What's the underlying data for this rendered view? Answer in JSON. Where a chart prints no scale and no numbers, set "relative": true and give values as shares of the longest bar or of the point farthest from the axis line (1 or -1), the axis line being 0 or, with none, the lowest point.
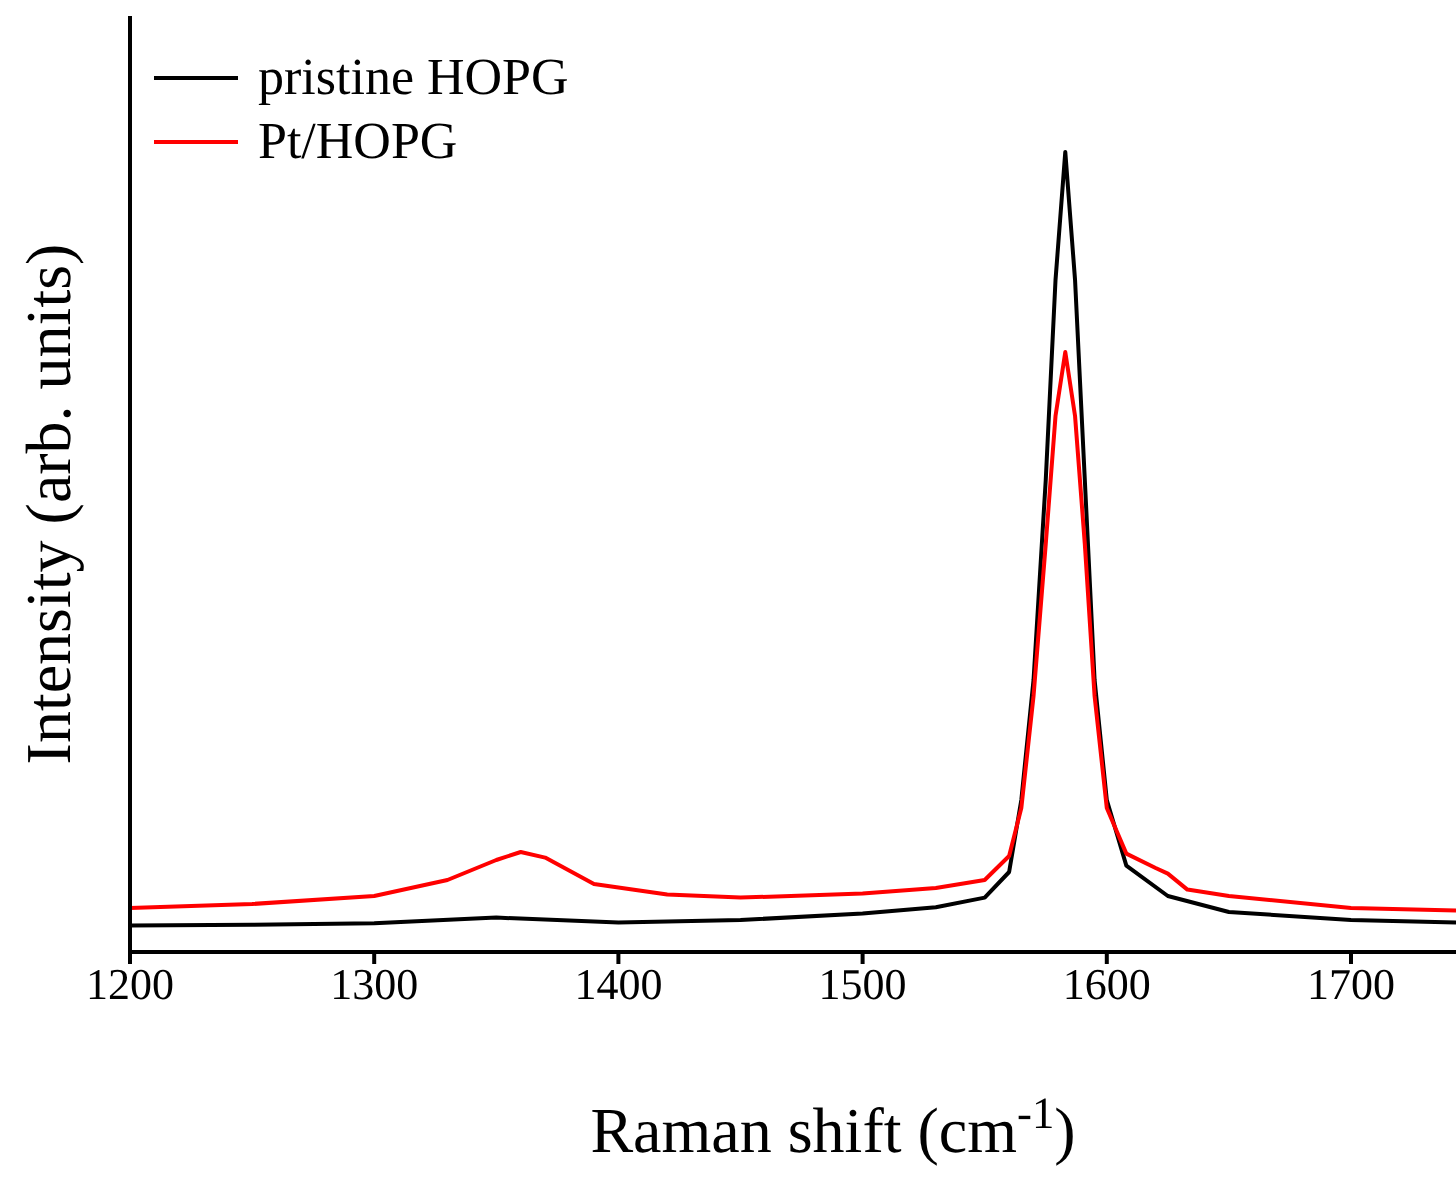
{
  "chart_data": {
    "type": "line",
    "xlabel": "Raman shift (cm$^{-1}$)",
    "ylabel": "Intensity (arb. units)",
    "relative": true,
    "xlim": [
      1200,
      1743
    ],
    "xticks": [
      1200,
      1300,
      1400,
      1500,
      1600,
      1700
    ],
    "legend": "top left",
    "grid": false,
    "marker": "none",
    "line_style": "solid",
    "series": [
      {
        "name": "pristine HOPG",
        "color": "#000000",
        "x": [
          1200,
          1250,
          1300,
          1350,
          1400,
          1450,
          1500,
          1530,
          1550,
          1560,
          1565,
          1570,
          1575,
          1579,
          1583,
          1587,
          1591,
          1595,
          1600,
          1608,
          1625,
          1650,
          1700,
          1743
        ],
        "values": [
          0.033,
          0.034,
          0.036,
          0.043,
          0.037,
          0.04,
          0.048,
          0.056,
          0.068,
          0.1,
          0.19,
          0.34,
          0.59,
          0.84,
          1.0,
          0.84,
          0.59,
          0.34,
          0.19,
          0.108,
          0.07,
          0.05,
          0.04,
          0.037
        ]
      },
      {
        "name": "Pt/HOPG",
        "color": "#ff0000",
        "x": [
          1200,
          1250,
          1300,
          1330,
          1350,
          1360,
          1370,
          1390,
          1420,
          1450,
          1500,
          1530,
          1550,
          1560,
          1565,
          1570,
          1575,
          1579,
          1583,
          1587,
          1591,
          1595,
          1600,
          1608,
          1620,
          1625,
          1633,
          1650,
          1700,
          1743
        ],
        "values": [
          0.055,
          0.06,
          0.07,
          0.09,
          0.115,
          0.125,
          0.118,
          0.085,
          0.072,
          0.068,
          0.073,
          0.08,
          0.09,
          0.12,
          0.18,
          0.32,
          0.51,
          0.67,
          0.75,
          0.67,
          0.51,
          0.32,
          0.18,
          0.123,
          0.105,
          0.098,
          0.078,
          0.07,
          0.055,
          0.052
        ]
      }
    ]
  }
}
